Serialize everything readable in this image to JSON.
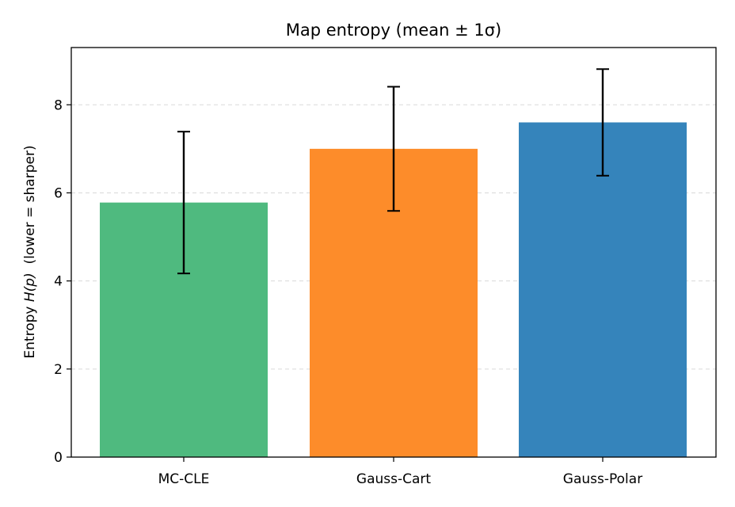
{
  "chart_data": {
    "type": "bar",
    "title": "Map entropy (mean ± 1σ)",
    "xlabel": "",
    "ylabel": "Entropy H(p)  (lower = sharper)",
    "categories": [
      "MC-CLE",
      "Gauss-Cart",
      "Gauss-Polar"
    ],
    "values": [
      5.78,
      7.0,
      7.6
    ],
    "error": [
      1.61,
      1.41,
      1.21
    ],
    "colors": [
      "#4fba7f",
      "#fd8c2a",
      "#3584bb"
    ],
    "ylim": [
      0,
      9.3
    ],
    "yticks": [
      "0",
      "2",
      "4",
      "6",
      "8"
    ],
    "grid": "y-dashed",
    "legend": "none"
  }
}
